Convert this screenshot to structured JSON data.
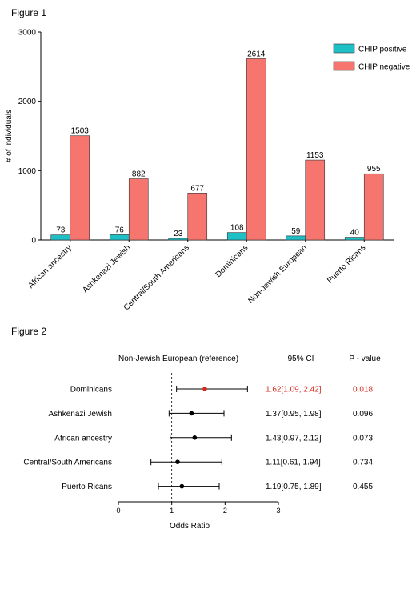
{
  "figure1": {
    "label": "Figure 1",
    "chart_data": {
      "type": "bar",
      "ylabel": "# of individuals",
      "ylim": [
        0,
        3000
      ],
      "yticks": [
        0,
        1000,
        2000,
        3000
      ],
      "categories": [
        "African ancestry",
        "Ashkenazi Jewish",
        "Central/South Americans",
        "Dominicans",
        "Non-Jewish European",
        "Puerto Ricans"
      ],
      "series": [
        {
          "name": "CHIP positive",
          "color": "#1fbfc6",
          "values": [
            73,
            76,
            23,
            108,
            59,
            40
          ]
        },
        {
          "name": "CHIP negative",
          "color": "#f6766f",
          "values": [
            1503,
            882,
            677,
            2614,
            1153,
            955
          ]
        }
      ],
      "legend": "top-right"
    }
  },
  "figure2": {
    "label": "Figure 2",
    "chart_data": {
      "type": "scatter",
      "subtype": "forest",
      "reference_label": "Non-Jewish European (reference)",
      "ci_header": "95% CI",
      "p_header": "P - value",
      "xlabel": "Odds Ratio",
      "xlim": [
        0,
        3
      ],
      "xticks": [
        0,
        1,
        2,
        3
      ],
      "reference_line": 1,
      "highlight_color": "#d42a1c",
      "rows": [
        {
          "label": "Dominicans",
          "or": 1.62,
          "lo": 1.09,
          "hi": 2.42,
          "ci_text": "1.62[1.09, 2.42]",
          "p": "0.018",
          "highlight": true
        },
        {
          "label": "Ashkenazi Jewish",
          "or": 1.37,
          "lo": 0.95,
          "hi": 1.98,
          "ci_text": "1.37[0.95, 1.98]",
          "p": "0.096",
          "highlight": false
        },
        {
          "label": "African ancestry",
          "or": 1.43,
          "lo": 0.97,
          "hi": 2.12,
          "ci_text": "1.43[0.97, 2.12]",
          "p": "0.073",
          "highlight": false
        },
        {
          "label": "Central/South Americans",
          "or": 1.11,
          "lo": 0.61,
          "hi": 1.94,
          "ci_text": "1.11[0.61, 1.94]",
          "p": "0.734",
          "highlight": false
        },
        {
          "label": "Puerto Ricans",
          "or": 1.19,
          "lo": 0.75,
          "hi": 1.89,
          "ci_text": "1.19[0.75, 1.89]",
          "p": "0.455",
          "highlight": false
        }
      ]
    }
  }
}
